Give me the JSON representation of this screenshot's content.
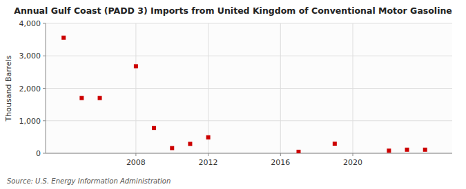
{
  "chart_data": {
    "type": "scatter",
    "title": "Annual Gulf Coast (PADD 3) Imports from United Kingdom of Conventional Motor Gasoline",
    "ylabel": "Thousand Barrels",
    "annotations": [
      "Source: U.S. Energy Information Administration"
    ],
    "x": [
      2004,
      2005,
      2006,
      2008,
      2009,
      2010,
      2011,
      2012,
      2017,
      2019,
      2022,
      2023,
      2024
    ],
    "values": [
      3560,
      1700,
      1700,
      2680,
      780,
      160,
      290,
      490,
      45,
      295,
      80,
      110,
      110
    ],
    "color": "#cc0000",
    "marker": "square",
    "xlim": [
      2003.0,
      2025.5
    ],
    "xticks": [
      2008,
      2012,
      2016,
      2020
    ],
    "ylim": [
      0,
      4000
    ],
    "yticks": [
      0,
      {
        "value": 1000,
        "label": "1,000"
      },
      {
        "value": 2000,
        "label": "2,000"
      },
      {
        "value": 3000,
        "label": "3,000"
      },
      {
        "value": 4000,
        "label": "4,000"
      }
    ],
    "grid": true
  }
}
